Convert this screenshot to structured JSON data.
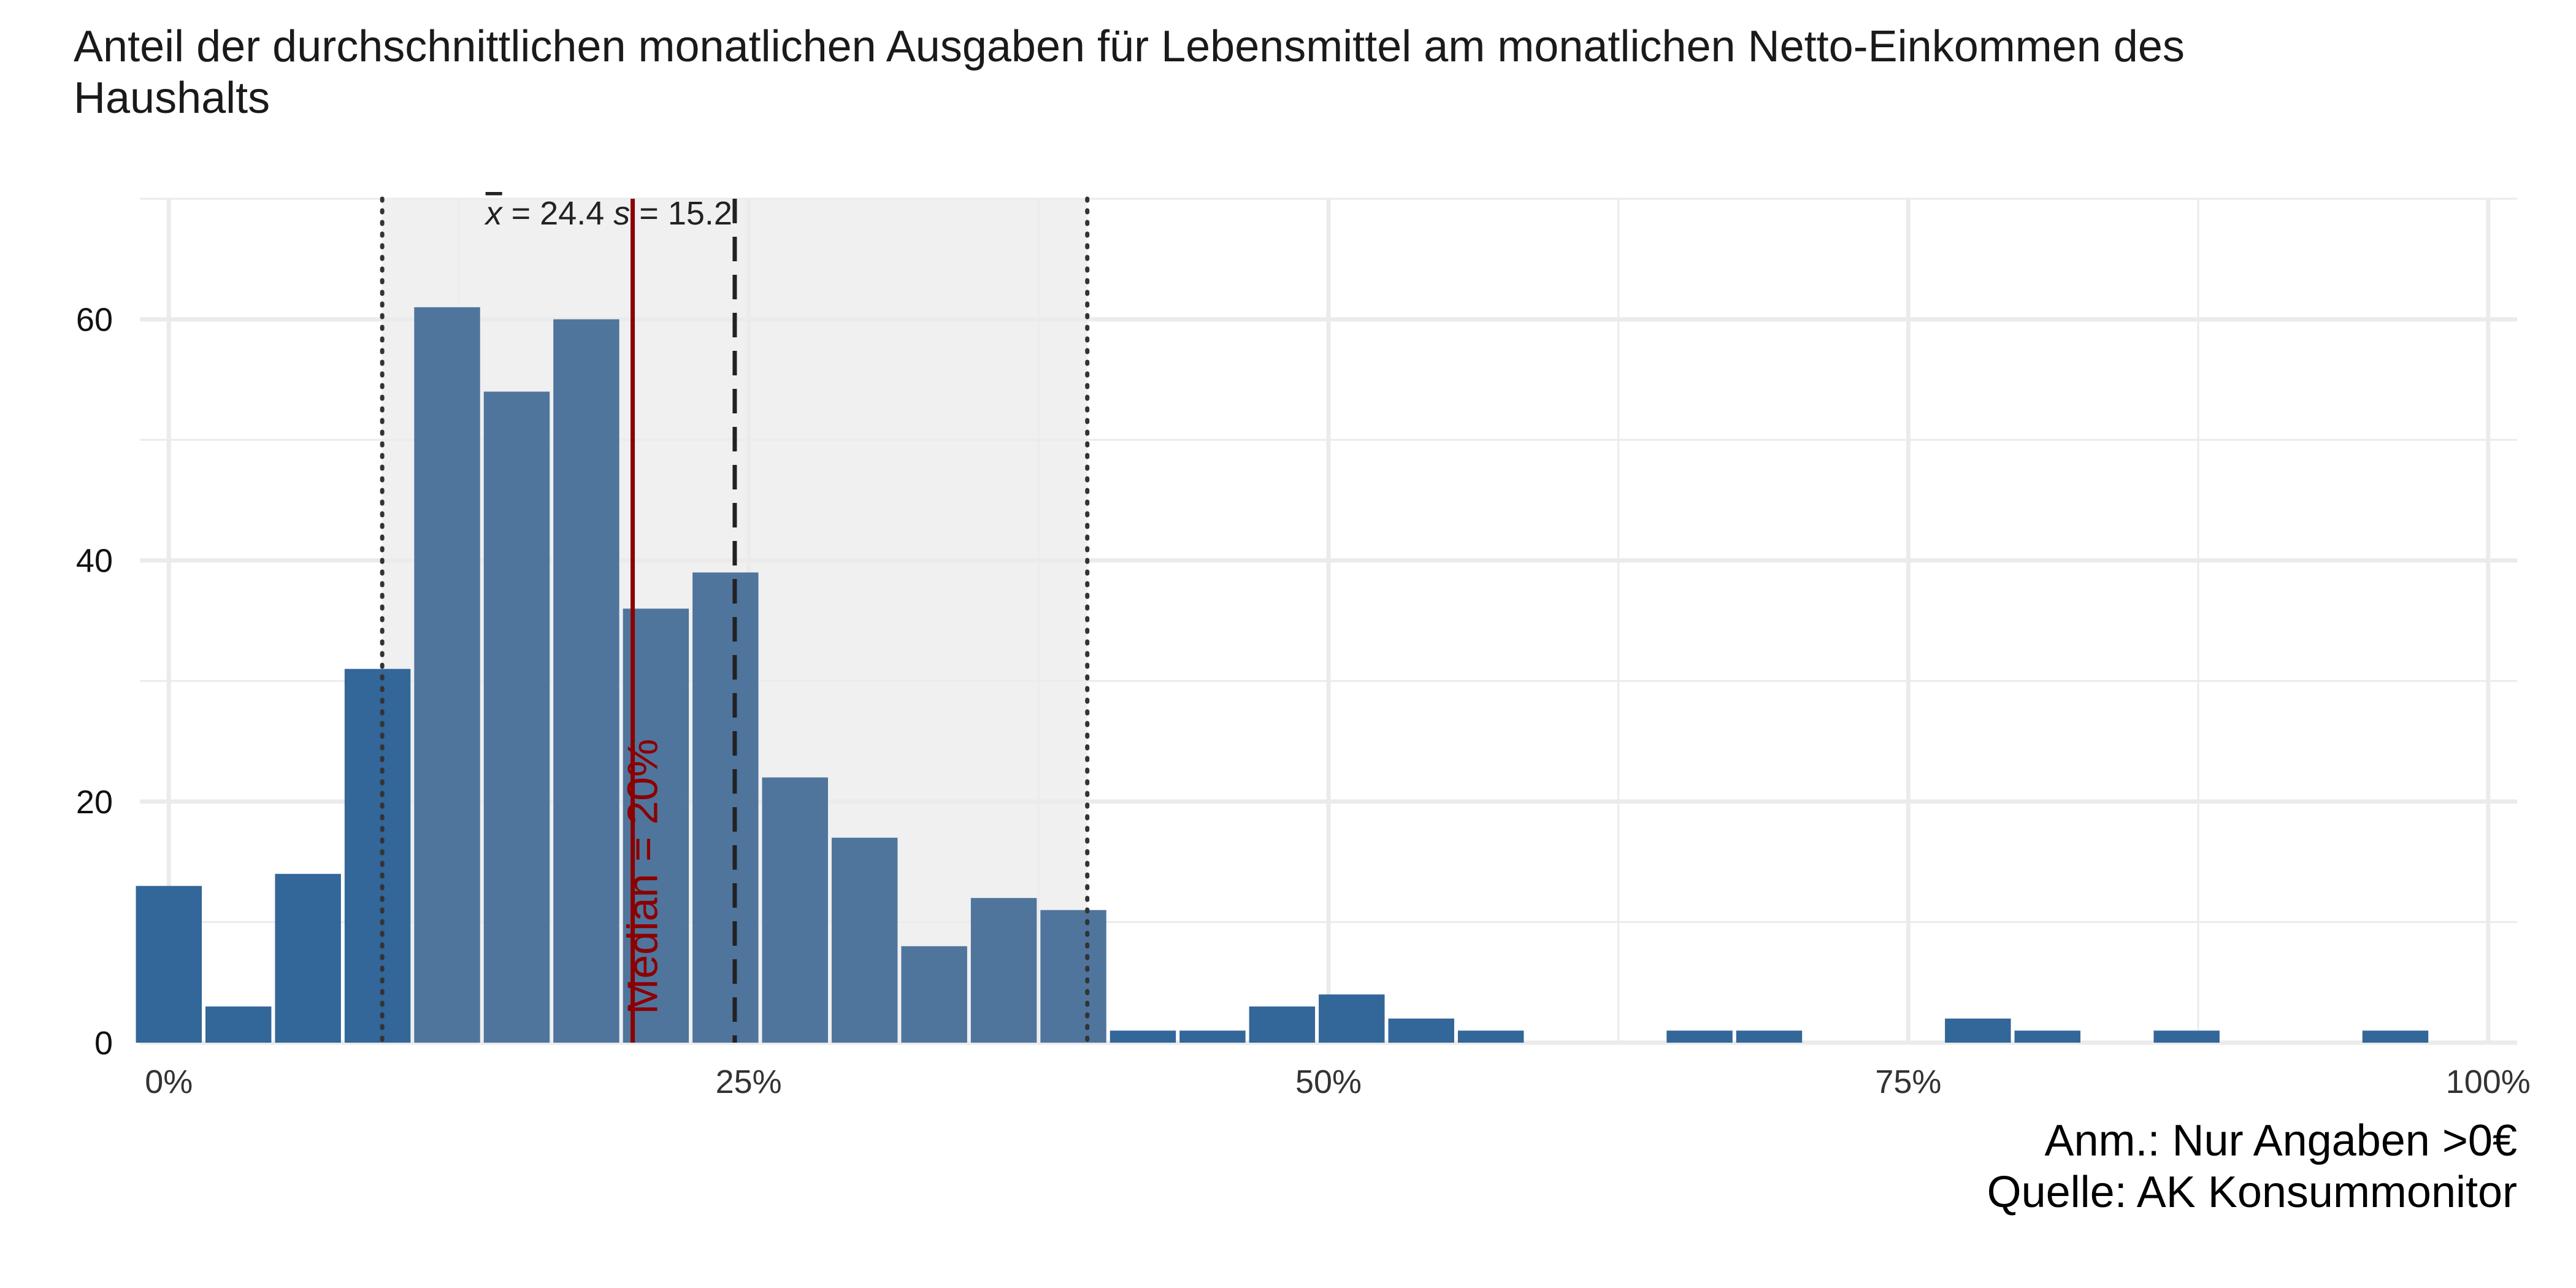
{
  "chart_data": {
    "type": "bar",
    "title": "Anteil der durchschnittlichen monatlichen Ausgaben für Lebensmittel am monatlichen Netto-Einkommen des Haushalts",
    "xlabel": "",
    "ylabel": "",
    "xlim": [
      -0.0125,
      1.0125
    ],
    "ylim": [
      0,
      70
    ],
    "x_ticks": [
      {
        "value": 0,
        "label": "0%"
      },
      {
        "value": 0.25,
        "label": "25%"
      },
      {
        "value": 0.5,
        "label": "50%"
      },
      {
        "value": 0.75,
        "label": "75%"
      },
      {
        "value": 1,
        "label": "100%"
      }
    ],
    "y_ticks": [
      {
        "value": 0,
        "label": "0"
      },
      {
        "value": 20,
        "label": "20"
      },
      {
        "value": 40,
        "label": "40"
      },
      {
        "value": 60,
        "label": "60"
      }
    ],
    "bin_width": 0.03,
    "bins": [
      {
        "center": 0.0,
        "count": 13
      },
      {
        "center": 0.03,
        "count": 3
      },
      {
        "center": 0.06,
        "count": 14
      },
      {
        "center": 0.09,
        "count": 31
      },
      {
        "center": 0.12,
        "count": 61
      },
      {
        "center": 0.15,
        "count": 54
      },
      {
        "center": 0.18,
        "count": 60
      },
      {
        "center": 0.21,
        "count": 36
      },
      {
        "center": 0.24,
        "count": 39
      },
      {
        "center": 0.27,
        "count": 22
      },
      {
        "center": 0.3,
        "count": 17
      },
      {
        "center": 0.33,
        "count": 8
      },
      {
        "center": 0.36,
        "count": 12
      },
      {
        "center": 0.39,
        "count": 11
      },
      {
        "center": 0.42,
        "count": 1
      },
      {
        "center": 0.45,
        "count": 1
      },
      {
        "center": 0.48,
        "count": 3
      },
      {
        "center": 0.51,
        "count": 4
      },
      {
        "center": 0.54,
        "count": 2
      },
      {
        "center": 0.57,
        "count": 1
      },
      {
        "center": 0.66,
        "count": 1
      },
      {
        "center": 0.69,
        "count": 1
      },
      {
        "center": 0.78,
        "count": 2
      },
      {
        "center": 0.81,
        "count": 1
      },
      {
        "center": 0.87,
        "count": 1
      },
      {
        "center": 0.96,
        "count": 1
      }
    ],
    "mean": 0.244,
    "sd": 0.152,
    "median": 0.2,
    "mean_label_value": "24.4",
    "sd_label_value": "15.2",
    "median_label": "Median = 20%",
    "shaded_band": [
      0.092,
      0.396
    ],
    "colors": {
      "bar_outside": "#336699",
      "bar_inside": "#4f759d",
      "band": "#f0f0f0",
      "median": "#8b0000",
      "grid": "#ebebeb",
      "text": "#333333"
    },
    "grid": true,
    "legend": "none"
  },
  "caption": {
    "line1": "Anm.: Nur Angaben >0€",
    "line2": "Quelle: AK Konsummonitor"
  }
}
